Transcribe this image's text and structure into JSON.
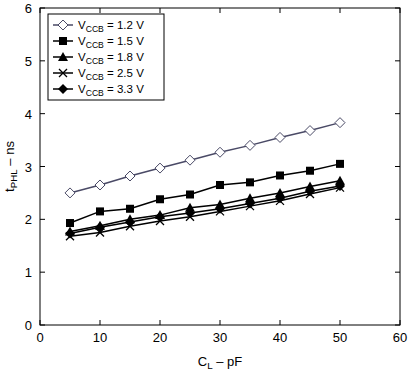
{
  "chart_data": {
    "type": "line",
    "x_label": "CL – pF",
    "y_label": "tPHL – ns",
    "x": [
      5,
      10,
      15,
      20,
      25,
      30,
      35,
      40,
      45,
      50
    ],
    "series": [
      {
        "name": "VCCB = 1.2 V",
        "color": "#4a4a66",
        "marker": "diamond-open",
        "values": [
          2.5,
          2.65,
          2.82,
          2.97,
          3.12,
          3.27,
          3.4,
          3.55,
          3.68,
          3.83
        ]
      },
      {
        "name": "VCCB = 1.5 V",
        "color": "#000000",
        "marker": "square",
        "values": [
          1.93,
          2.15,
          2.2,
          2.38,
          2.47,
          2.65,
          2.7,
          2.83,
          2.92,
          3.05
        ]
      },
      {
        "name": "VCCB = 1.8 V",
        "color": "#000000",
        "marker": "triangle",
        "values": [
          1.77,
          1.88,
          2.0,
          2.08,
          2.22,
          2.28,
          2.4,
          2.5,
          2.62,
          2.73
        ]
      },
      {
        "name": "VCCB = 2.5 V",
        "color": "#000000",
        "marker": "x",
        "values": [
          1.68,
          1.75,
          1.87,
          1.97,
          2.05,
          2.15,
          2.25,
          2.35,
          2.48,
          2.6
        ]
      },
      {
        "name": "VCCB = 3.3 V",
        "color": "#000000",
        "marker": "diamond",
        "values": [
          1.73,
          1.85,
          1.95,
          2.05,
          2.12,
          2.2,
          2.3,
          2.4,
          2.53,
          2.63
        ]
      }
    ],
    "xlim": [
      0,
      60
    ],
    "xticks": [
      0,
      10,
      20,
      30,
      40,
      50,
      60
    ],
    "ylim": [
      0,
      6
    ],
    "yticks": [
      0,
      1,
      2,
      3,
      4,
      5,
      6
    ],
    "grid": false,
    "legend": "upper left"
  }
}
